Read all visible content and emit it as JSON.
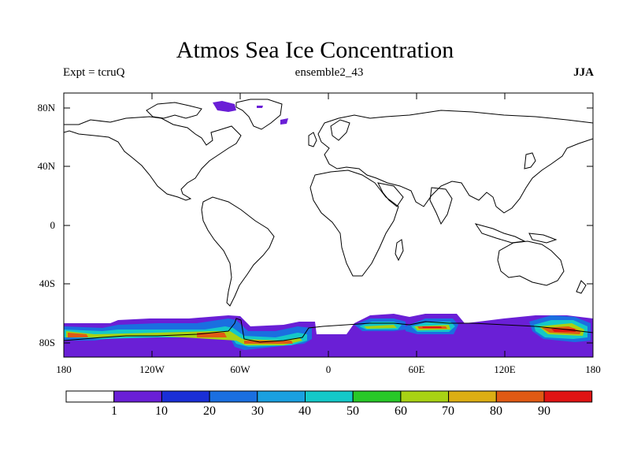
{
  "title": "Atmos Sea Ice Concentration",
  "subtitle_left": "Expt = tcruQ",
  "subtitle_center": "ensemble2_43",
  "subtitle_right": "JJA",
  "lat_axis": [
    "80N",
    "40N",
    "0",
    "40S",
    "80S"
  ],
  "lon_axis": [
    "180",
    "120W",
    "60W",
    "0",
    "60E",
    "120E",
    "180"
  ],
  "colorbar": {
    "labels": [
      "1",
      "10",
      "20",
      "30",
      "40",
      "50",
      "60",
      "70",
      "80",
      "90"
    ],
    "colors": [
      "#ffffff",
      "#6a1fd6",
      "#1a2fd6",
      "#1a6fe0",
      "#1aa0e0",
      "#14c8c8",
      "#28c828",
      "#a8d214",
      "#dcae14",
      "#e05a14",
      "#e01414"
    ]
  },
  "map": {
    "projection": "cylindrical-equidistant",
    "lon_range": [
      -180,
      180
    ],
    "lat_range": [
      -90,
      90
    ],
    "field": "sea ice concentration (%)",
    "season": "JJA"
  }
}
